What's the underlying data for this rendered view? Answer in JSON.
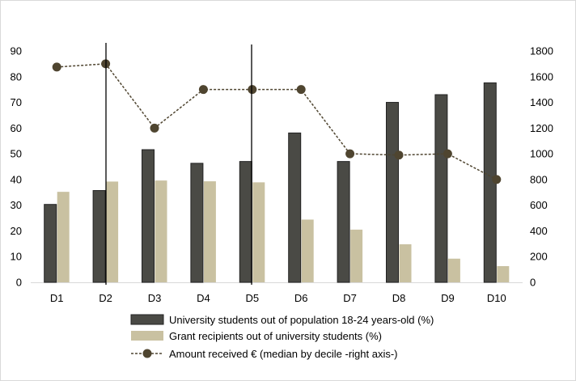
{
  "chart_data": {
    "type": "bar",
    "categories": [
      "D1",
      "D2",
      "D3",
      "D4",
      "D5",
      "D6",
      "D7",
      "D8",
      "D9",
      "D10"
    ],
    "left_axis": {
      "ylim": [
        0,
        90
      ],
      "ticks": [
        "0",
        "10",
        "20",
        "30",
        "40",
        "50",
        "60",
        "70",
        "80",
        "90"
      ]
    },
    "right_axis": {
      "ylim": [
        0,
        1800
      ],
      "ticks": [
        "0",
        "200",
        "400",
        "600",
        "800",
        "1000",
        "1200",
        "1400",
        "1600",
        "1800"
      ]
    },
    "series": [
      {
        "name": "University students out of population 18-24 years-old (%)",
        "kind": "bar",
        "axis": "left",
        "color": "#4a4a45",
        "values": [
          30.3,
          35.7,
          51.6,
          46.3,
          47.0,
          58.1,
          47.0,
          70.0,
          73.0,
          77.6
        ]
      },
      {
        "name": "Grant recipients out of university students (%)",
        "kind": "bar",
        "axis": "left",
        "color": "#c9c1a1",
        "values": [
          35.2,
          39.2,
          39.6,
          39.3,
          38.9,
          24.4,
          20.5,
          14.8,
          9.2,
          6.3
        ]
      },
      {
        "name": "Amount received € (median by decile -right axis-)",
        "kind": "line",
        "axis": "right",
        "color": "#4f4530",
        "values": [
          1675,
          1700,
          1200,
          1500,
          1500,
          1500,
          1000,
          990,
          1000,
          800
        ]
      }
    ],
    "title": "",
    "xlabel": "",
    "ylabel": "",
    "y2label": "",
    "grid": false,
    "legend_position": "bottom"
  }
}
